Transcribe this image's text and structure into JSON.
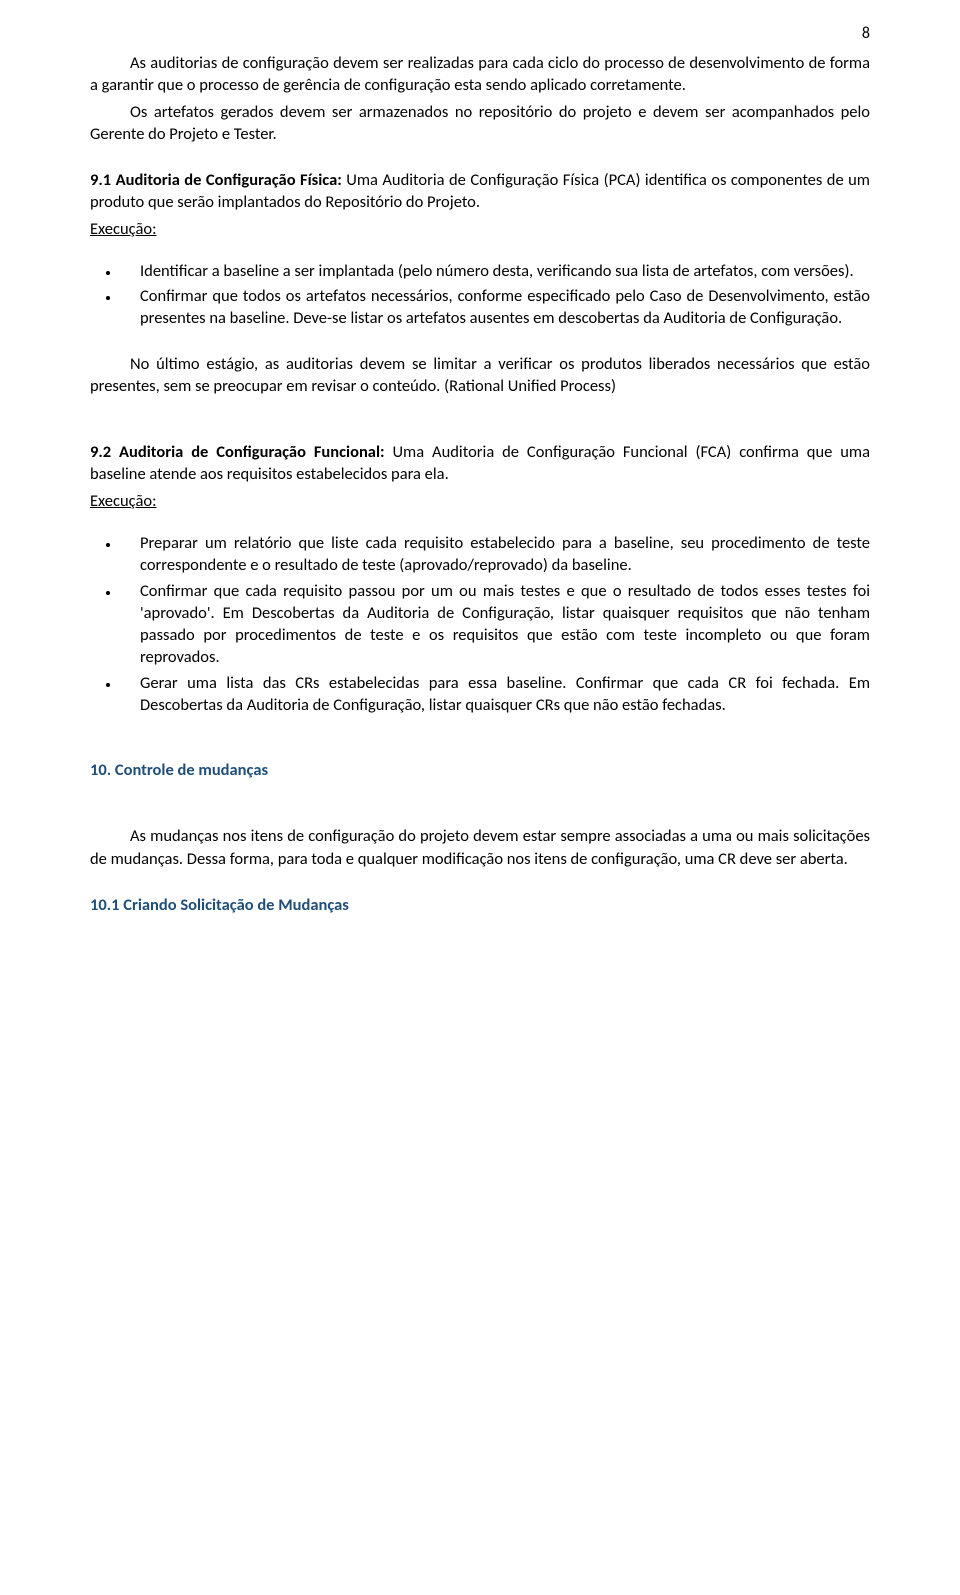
{
  "page_number": "8",
  "colors": {
    "heading_blue": "#1f4e79",
    "body_text": "#000000",
    "background": "#ffffff"
  },
  "p_intro_1": "As auditorias de configuração devem ser realizadas para cada ciclo do processo de desenvolvimento de forma a garantir que o processo de gerência de configuração esta sendo aplicado corretamente.",
  "p_intro_2": "Os artefatos gerados devem ser armazenados no repositório do projeto e devem ser acompanhados pelo Gerente do Projeto e Tester.",
  "s91": {
    "title": "9.1 Auditoria de Configuração Física:",
    "body": " Uma Auditoria de Configuração Física (PCA) identifica os componentes de um produto que serão implantados do Repositório do Projeto.",
    "exec_label": "Execução:",
    "bullets": [
      "Identificar a baseline a ser implantada (pelo número desta, verificando sua lista de artefatos, com versões).",
      "Confirmar que todos os artefatos necessários, conforme especificado pelo Caso de Desenvolvimento, estão presentes na baseline. Deve-se listar os artefatos ausentes em descobertas da Auditoria de Configuração."
    ],
    "after": "No último estágio, as auditorias devem se limitar a verificar os produtos liberados necessários que estão presentes, sem se preocupar em revisar o conteúdo. (Rational Unified Process)"
  },
  "s92": {
    "title": "9.2 Auditoria de Configuração Funcional:",
    "body": " Uma Auditoria de Configuração Funcional (FCA) confirma que uma baseline atende aos requisitos estabelecidos para ela.",
    "exec_label": "Execução:",
    "bullets": [
      "Preparar um relatório que liste cada requisito estabelecido para a baseline, seu procedimento de teste correspondente e o resultado de teste (aprovado/reprovado) da baseline.",
      "Confirmar que cada requisito passou por um ou mais testes e que o resultado de todos esses testes foi 'aprovado'. Em Descobertas da Auditoria de Configuração, listar quaisquer requisitos que não tenham passado por procedimentos de teste e os requisitos que estão com teste incompleto ou que foram reprovados.",
      "Gerar uma lista das CRs estabelecidas para essa baseline. Confirmar que cada CR foi fechada. Em Descobertas da Auditoria de Configuração, listar quaisquer CRs que não estão fechadas."
    ]
  },
  "s10": {
    "title": "10. Controle de mudanças",
    "body": "As mudanças nos itens de configuração do projeto devem estar sempre associadas a uma ou mais solicitações de mudanças. Dessa forma, para toda e qualquer modificação nos itens de configuração, uma CR deve ser aberta."
  },
  "s101": {
    "title": "10.1 Criando Solicitação de Mudanças"
  }
}
